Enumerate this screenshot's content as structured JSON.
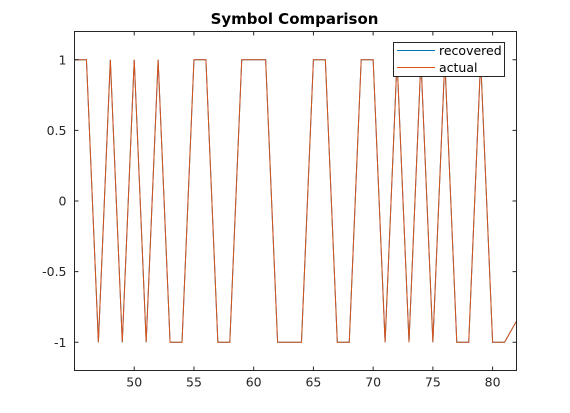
{
  "chart_data": {
    "type": "line",
    "title": "Symbol Comparison",
    "xlabel": "",
    "ylabel": "",
    "xlim": [
      45,
      82
    ],
    "ylim": [
      -1.2,
      1.2
    ],
    "xticks": [
      50,
      55,
      60,
      65,
      70,
      75,
      80
    ],
    "yticks": [
      1,
      0.5,
      0,
      -0.5,
      -1
    ],
    "ytick_labels": [
      "1",
      "0.5",
      "0",
      "-0.5",
      "-1"
    ],
    "grid": false,
    "legend_position": "top-right",
    "series": [
      {
        "name": "recovered",
        "color": "#0072BD",
        "x": [
          45,
          46,
          47,
          48,
          49,
          50,
          51,
          52,
          53,
          54,
          55,
          56,
          57,
          58,
          59,
          60,
          61,
          62,
          63,
          64,
          65,
          66,
          67,
          68,
          69,
          70,
          71,
          72,
          73,
          74,
          75,
          76,
          77,
          78,
          79,
          80,
          81,
          82
        ],
        "y": [
          1,
          1,
          -1,
          1,
          -1,
          1,
          -1,
          1,
          -1,
          -1,
          1,
          1,
          -1,
          -1,
          1,
          1,
          1,
          -1,
          -1,
          -1,
          1,
          1,
          -1,
          -1,
          1,
          1,
          -1,
          1,
          -1,
          1,
          -1,
          1,
          -1,
          -1,
          1,
          -1,
          -1,
          -0.85
        ]
      },
      {
        "name": "actual",
        "color": "#D95319",
        "x": [
          45,
          46,
          47,
          48,
          49,
          50,
          51,
          52,
          53,
          54,
          55,
          56,
          57,
          58,
          59,
          60,
          61,
          62,
          63,
          64,
          65,
          66,
          67,
          68,
          69,
          70,
          71,
          72,
          73,
          74,
          75,
          76,
          77,
          78,
          79,
          80,
          81,
          82
        ],
        "y": [
          1,
          1,
          -1,
          1,
          -1,
          1,
          -1,
          1,
          -1,
          -1,
          1,
          1,
          -1,
          -1,
          1,
          1,
          1,
          -1,
          -1,
          -1,
          1,
          1,
          -1,
          -1,
          1,
          1,
          -1,
          1,
          -1,
          1,
          -1,
          1,
          -1,
          -1,
          1,
          -1,
          -1,
          -0.85
        ]
      }
    ]
  }
}
